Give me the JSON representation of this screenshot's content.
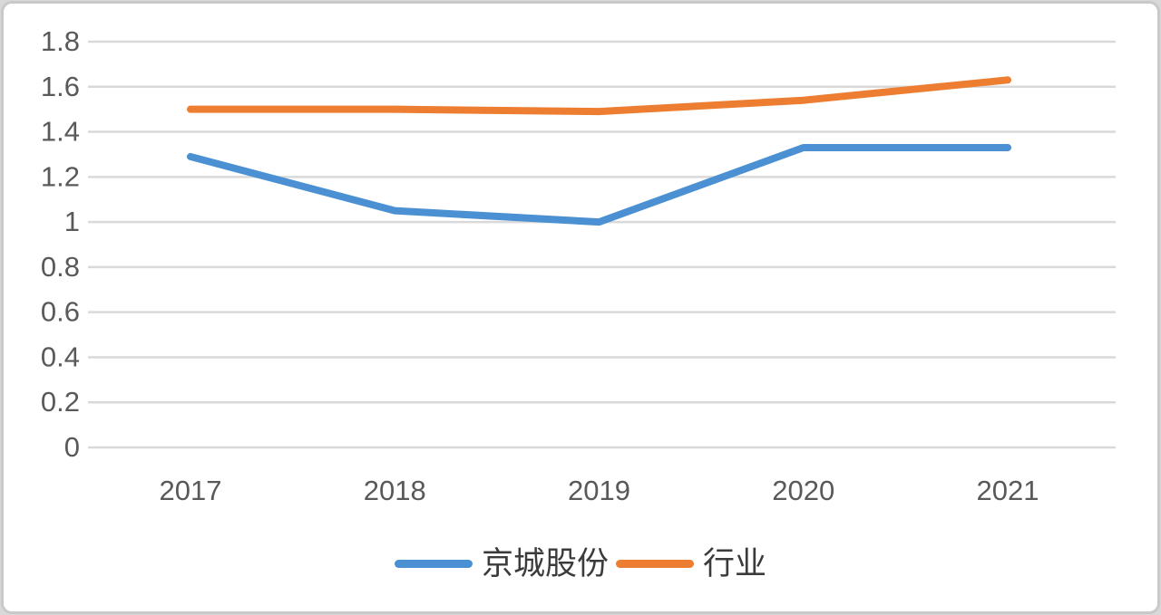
{
  "chart_data": {
    "type": "line",
    "title": "",
    "xlabel": "",
    "ylabel": "",
    "categories": [
      "2017",
      "2018",
      "2019",
      "2020",
      "2021"
    ],
    "series": [
      {
        "name": "京城股份",
        "color": "#4A90D2",
        "values": [
          1.29,
          1.05,
          1.0,
          1.33,
          1.33
        ]
      },
      {
        "name": "行业",
        "color": "#ED7D31",
        "values": [
          1.5,
          1.5,
          1.49,
          1.54,
          1.63
        ]
      }
    ],
    "ylim": [
      0,
      1.8
    ],
    "ytick_step": 0.2,
    "ytick_labels": [
      "1.8",
      "1.6",
      "1.4",
      "1.2",
      "1",
      "0.8",
      "0.6",
      "0.4",
      "0.2",
      "0"
    ],
    "grid": true,
    "legend_position": "bottom",
    "grid_color": "#d9d9d9",
    "axis_label_color": "#595959",
    "line_width": 8
  }
}
